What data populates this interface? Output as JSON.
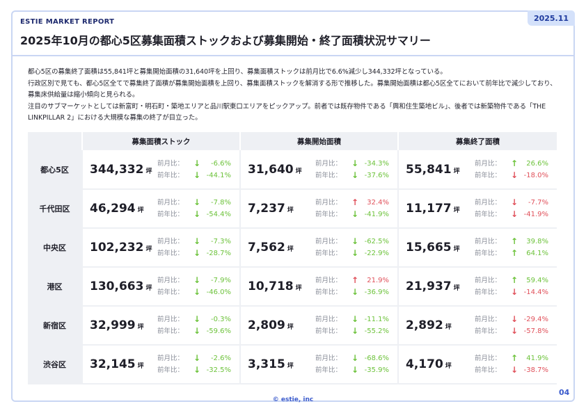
{
  "header": {
    "brand": "ESTIE MARKET REPORT",
    "date_badge": "2025.11",
    "title": "2025年10月の都心5区募集面積ストックおよび募集開始・終了面積状況サマリー"
  },
  "summary": [
    "都心5区の募集終了面積は55,841坪と募集開始面積の31,640坪を上回り、募集面積ストックは前月比で6.6%減少し344,332坪となっている。",
    "行政区別で見ても、都心5区全てで募集終了面積が募集開始面積を上回り、募集面積ストックを解消する形で推移した。募集開始面積は都心5区全てにおいて前年比で減少しており、募集床供給量は縮小傾向と見られる。",
    "注目のサブマーケットとしては新富町・明石町・築地エリアと品川駅東口エリアをピックアップ。前者では既存物件である「興和住生築地ビル」、後者では新築物件である「THE LINKPILLAR 2」における大規模な募集の終了が目立った。"
  ],
  "table": {
    "columns": [
      "募集面積ストック",
      "募集開始面積",
      "募集終了面積"
    ],
    "mom_label": "前月比：",
    "yoy_label": "前年比：",
    "unit": "坪",
    "rows": [
      {
        "area": "都心5区",
        "cells": [
          {
            "value": "344,332",
            "mom": "-6.6%",
            "mom_dir": "down",
            "mom_color": "green",
            "yoy": "-44.1%",
            "yoy_dir": "down",
            "yoy_color": "green"
          },
          {
            "value": "31,640",
            "mom": "-34.3%",
            "mom_dir": "down",
            "mom_color": "green",
            "yoy": "-37.6%",
            "yoy_dir": "down",
            "yoy_color": "green"
          },
          {
            "value": "55,841",
            "mom": "26.6%",
            "mom_dir": "up",
            "mom_color": "green",
            "yoy": "-18.0%",
            "yoy_dir": "down",
            "yoy_color": "red"
          }
        ]
      },
      {
        "area": "千代田区",
        "cells": [
          {
            "value": "46,294",
            "mom": "-7.8%",
            "mom_dir": "down",
            "mom_color": "green",
            "yoy": "-54.4%",
            "yoy_dir": "down",
            "yoy_color": "green"
          },
          {
            "value": "7,237",
            "mom": "32.4%",
            "mom_dir": "up",
            "mom_color": "red",
            "yoy": "-41.9%",
            "yoy_dir": "down",
            "yoy_color": "green"
          },
          {
            "value": "11,177",
            "mom": "-7.7%",
            "mom_dir": "down",
            "mom_color": "red",
            "yoy": "-41.9%",
            "yoy_dir": "down",
            "yoy_color": "red"
          }
        ]
      },
      {
        "area": "中央区",
        "cells": [
          {
            "value": "102,232",
            "mom": "-7.3%",
            "mom_dir": "down",
            "mom_color": "green",
            "yoy": "-28.7%",
            "yoy_dir": "down",
            "yoy_color": "green"
          },
          {
            "value": "7,562",
            "mom": "-62.5%",
            "mom_dir": "down",
            "mom_color": "green",
            "yoy": "-22.9%",
            "yoy_dir": "down",
            "yoy_color": "green"
          },
          {
            "value": "15,665",
            "mom": "39.8%",
            "mom_dir": "up",
            "mom_color": "green",
            "yoy": "64.1%",
            "yoy_dir": "up",
            "yoy_color": "green"
          }
        ]
      },
      {
        "area": "港区",
        "cells": [
          {
            "value": "130,663",
            "mom": "-7.9%",
            "mom_dir": "down",
            "mom_color": "green",
            "yoy": "-46.0%",
            "yoy_dir": "down",
            "yoy_color": "green"
          },
          {
            "value": "10,718",
            "mom": "21.9%",
            "mom_dir": "up",
            "mom_color": "red",
            "yoy": "-36.9%",
            "yoy_dir": "down",
            "yoy_color": "green"
          },
          {
            "value": "21,937",
            "mom": "59.4%",
            "mom_dir": "up",
            "mom_color": "green",
            "yoy": "-14.4%",
            "yoy_dir": "down",
            "yoy_color": "red"
          }
        ]
      },
      {
        "area": "新宿区",
        "cells": [
          {
            "value": "32,999",
            "mom": "-0.3%",
            "mom_dir": "down",
            "mom_color": "green",
            "yoy": "-59.6%",
            "yoy_dir": "down",
            "yoy_color": "green"
          },
          {
            "value": "2,809",
            "mom": "-11.1%",
            "mom_dir": "down",
            "mom_color": "green",
            "yoy": "-55.2%",
            "yoy_dir": "down",
            "yoy_color": "green"
          },
          {
            "value": "2,892",
            "mom": "-29.4%",
            "mom_dir": "down",
            "mom_color": "red",
            "yoy": "-57.8%",
            "yoy_dir": "down",
            "yoy_color": "red"
          }
        ]
      },
      {
        "area": "渋谷区",
        "cells": [
          {
            "value": "32,145",
            "mom": "-2.6%",
            "mom_dir": "down",
            "mom_color": "green",
            "yoy": "-32.5%",
            "yoy_dir": "down",
            "yoy_color": "green"
          },
          {
            "value": "3,315",
            "mom": "-68.6%",
            "mom_dir": "down",
            "mom_color": "green",
            "yoy": "-35.9%",
            "yoy_dir": "down",
            "yoy_color": "green"
          },
          {
            "value": "4,170",
            "mom": "41.9%",
            "mom_dir": "up",
            "mom_color": "green",
            "yoy": "-38.7%",
            "yoy_dir": "down",
            "yoy_color": "red"
          }
        ]
      }
    ]
  },
  "colors": {
    "green": "#6cc23a",
    "red": "#e0505a",
    "accent": "#3b5bcc"
  },
  "footer": {
    "copyright": "© estie, inc",
    "page_number": "04"
  }
}
